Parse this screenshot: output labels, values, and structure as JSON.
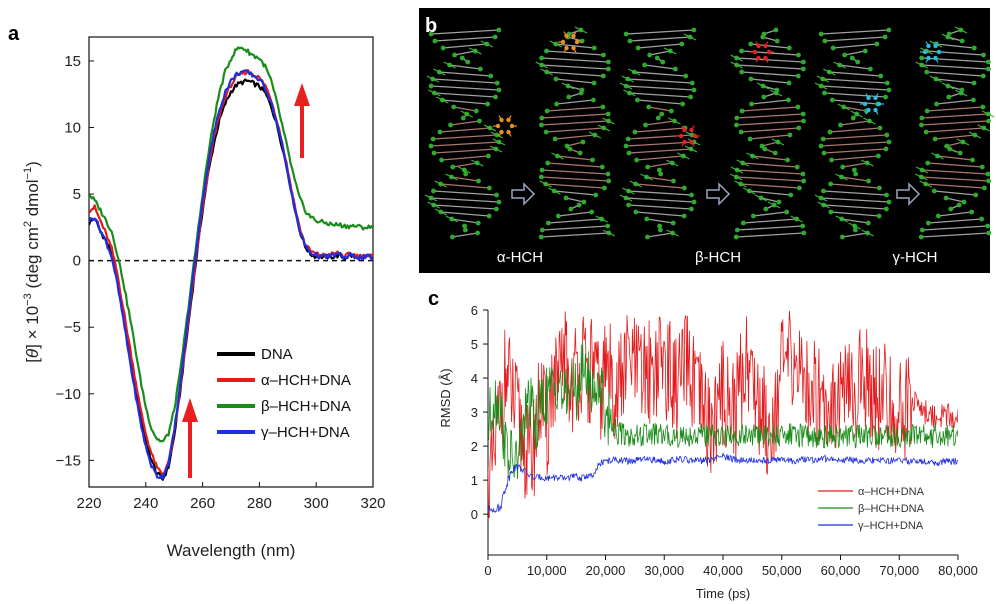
{
  "panels": {
    "a": "a",
    "b": "b",
    "c": "c"
  },
  "colors": {
    "dna": "#000000",
    "alpha": "#e41a1c",
    "beta": "#1a8c1a",
    "gamma": "#1f2fe0"
  },
  "chart_data": [
    {
      "id": "a",
      "type": "line",
      "xlabel": "Wavelength (nm)",
      "ylabel_parts": [
        "[",
        "θ",
        "] × 10",
        "−3",
        " (deg cm",
        "2",
        " dmol",
        "−1",
        ")"
      ],
      "xlim": [
        220,
        320
      ],
      "ylim": [
        -17,
        16.8
      ],
      "xticks": [
        220,
        240,
        260,
        280,
        300,
        320
      ],
      "yticks": [
        -15,
        -10,
        -5,
        0,
        5,
        10,
        15
      ],
      "ytick_labels": [
        "−15",
        "−10",
        "−5",
        "0",
        "5",
        "10",
        "15"
      ],
      "zero_line": true,
      "legend_position": "bottom-right",
      "series": [
        {
          "name": "DNA",
          "color": "#000000",
          "x": [
            220,
            222,
            224,
            226,
            228,
            230,
            232,
            234,
            236,
            238,
            240,
            242,
            244,
            246,
            248,
            250,
            252,
            254,
            256,
            258,
            260,
            262,
            264,
            266,
            268,
            270,
            272,
            274,
            276,
            278,
            280,
            282,
            284,
            286,
            288,
            290,
            292,
            294,
            296,
            298,
            300,
            302,
            304,
            306,
            308,
            310,
            312,
            314,
            316,
            318,
            320
          ],
          "y": [
            2.8,
            3.2,
            2.2,
            1.5,
            0.5,
            -1.5,
            -4,
            -6.5,
            -9,
            -11.5,
            -13.5,
            -15,
            -16,
            -16.4,
            -15.5,
            -13.2,
            -10,
            -6.5,
            -3,
            0.5,
            3.8,
            6.6,
            8.8,
            10.6,
            11.8,
            12.7,
            13.2,
            13.4,
            13.5,
            13.3,
            13.1,
            12.6,
            11.7,
            10.3,
            8.6,
            6.6,
            4.4,
            2.4,
            1.1,
            0.5,
            0.3,
            0.3,
            0.3,
            0.3,
            0.4,
            0.2,
            0.4,
            0.3,
            0.2,
            0.3,
            0.2
          ]
        },
        {
          "name": "α–HCH+DNA",
          "color": "#e41a1c",
          "x": [
            220,
            222,
            224,
            226,
            228,
            230,
            232,
            234,
            236,
            238,
            240,
            242,
            244,
            246,
            248,
            250,
            252,
            254,
            256,
            258,
            260,
            262,
            264,
            266,
            268,
            270,
            272,
            274,
            276,
            278,
            280,
            282,
            284,
            286,
            288,
            290,
            292,
            294,
            296,
            298,
            300,
            302,
            304,
            306,
            308,
            310,
            312,
            314,
            316,
            318,
            320
          ],
          "y": [
            3.8,
            4,
            3,
            2,
            0.9,
            -1,
            -3.5,
            -6,
            -8.5,
            -11,
            -13,
            -14.5,
            -15.6,
            -16,
            -15.2,
            -13,
            -9.8,
            -6.3,
            -2.8,
            0.7,
            4,
            6.8,
            9.2,
            11,
            12.3,
            13.2,
            13.8,
            14.1,
            14.2,
            14,
            13.7,
            13.2,
            12.2,
            10.7,
            8.9,
            6.8,
            4.6,
            2.6,
            1.3,
            0.7,
            0.5,
            0.4,
            0.4,
            0.5,
            0.6,
            0.3,
            0.5,
            0.4,
            0.3,
            0.4,
            0.3
          ]
        },
        {
          "name": "β–HCH+DNA",
          "color": "#1a8c1a",
          "x": [
            220,
            222,
            224,
            226,
            228,
            230,
            232,
            234,
            236,
            238,
            240,
            242,
            244,
            246,
            248,
            250,
            252,
            254,
            256,
            258,
            260,
            262,
            264,
            266,
            268,
            270,
            272,
            274,
            276,
            278,
            280,
            282,
            284,
            286,
            288,
            290,
            292,
            294,
            296,
            298,
            300,
            302,
            304,
            306,
            308,
            310,
            312,
            314,
            316,
            318,
            320
          ],
          "y": [
            5,
            4.5,
            3.8,
            3,
            2.2,
            0.5,
            -1.5,
            -3.8,
            -6.2,
            -8.8,
            -11,
            -12.6,
            -13.4,
            -13.6,
            -13,
            -11.2,
            -8.5,
            -5.2,
            -1.8,
            1.6,
            5,
            8,
            10.6,
            12.7,
            14.2,
            15.2,
            15.9,
            16,
            15.7,
            15.4,
            15.2,
            14.6,
            13.6,
            12,
            10.2,
            8.3,
            6.4,
            4.8,
            3.8,
            3.3,
            3,
            2.9,
            2.8,
            2.7,
            2.7,
            2.6,
            2.6,
            2.6,
            2.5,
            2.5,
            2.5
          ]
        },
        {
          "name": "γ–HCH+DNA",
          "color": "#1f2fe0",
          "x": [
            220,
            222,
            224,
            226,
            228,
            230,
            232,
            234,
            236,
            238,
            240,
            242,
            244,
            246,
            248,
            250,
            252,
            254,
            256,
            258,
            260,
            262,
            264,
            266,
            268,
            270,
            272,
            274,
            276,
            278,
            280,
            282,
            284,
            286,
            288,
            290,
            292,
            294,
            296,
            298,
            300,
            302,
            304,
            306,
            308,
            310,
            312,
            314,
            316,
            318,
            320
          ],
          "y": [
            3,
            3.3,
            2.3,
            1.4,
            0.3,
            -1.8,
            -4.3,
            -7,
            -9.6,
            -12,
            -14,
            -15.4,
            -16.2,
            -16.2,
            -15.2,
            -12.8,
            -9.5,
            -5.9,
            -2.3,
            1.2,
            4.5,
            7.3,
            9.6,
            11.4,
            12.7,
            13.5,
            14,
            14.2,
            14.1,
            13.9,
            13.6,
            13,
            12,
            10.5,
            8.7,
            6.6,
            4.4,
            2.4,
            1.2,
            0.6,
            0.4,
            0.3,
            0.3,
            0.4,
            0.5,
            0.2,
            0.4,
            0.3,
            0.2,
            0.3,
            0.2
          ]
        }
      ]
    },
    {
      "id": "c",
      "type": "line",
      "xlabel": "Time (ps)",
      "ylabel": "RMSD (Å)",
      "xlim": [
        0,
        80000
      ],
      "ylim": [
        -1.2,
        6
      ],
      "xticks": [
        0,
        10000,
        20000,
        30000,
        40000,
        50000,
        60000,
        70000,
        80000
      ],
      "xtick_labels": [
        "0",
        "10,000",
        "20,000",
        "30,000",
        "40,000",
        "50,000",
        "60,000",
        "70,000",
        "80,000"
      ],
      "yticks": [
        0,
        1,
        2,
        3,
        4,
        5,
        6
      ],
      "legend_position": "bottom-right",
      "series": [
        {
          "name": "α–HCH+DNA",
          "color": "#e41a1c",
          "x": [
            0,
            1000,
            2000,
            3000,
            4000,
            5000,
            6000,
            7000,
            8000,
            9000,
            10000,
            11000,
            12000,
            13000,
            14000,
            15000,
            16000,
            17000,
            18000,
            19000,
            20000,
            22000,
            24000,
            26000,
            28000,
            30000,
            32000,
            34000,
            36000,
            38000,
            40000,
            42000,
            44000,
            46000,
            48000,
            50000,
            52000,
            54000,
            56000,
            58000,
            60000,
            62000,
            64000,
            66000,
            68000,
            70000,
            72000,
            74000,
            76000,
            78000,
            80000
          ],
          "y": [
            0.5,
            1.5,
            3,
            4.1,
            3.5,
            2.8,
            2.2,
            1.5,
            2.2,
            3.5,
            2.3,
            4,
            3.6,
            4.8,
            3.6,
            4.2,
            4.5,
            3.8,
            4.6,
            3.2,
            4.4,
            3.6,
            4.6,
            4,
            4.3,
            4.5,
            3.7,
            4.4,
            3.2,
            2.5,
            3.6,
            3,
            4.7,
            3.3,
            2.5,
            4.2,
            4.6,
            3.8,
            3.6,
            3.3,
            3.6,
            3.4,
            4.2,
            3.5,
            3.4,
            2.8,
            3.5,
            3,
            2.9,
            2.9,
            2.8
          ]
        },
        {
          "name": "β–HCH+DNA",
          "color": "#1a8c1a",
          "x": [
            0,
            1000,
            2000,
            3000,
            4000,
            5000,
            6000,
            7000,
            8000,
            9000,
            10000,
            11000,
            12000,
            13000,
            14000,
            15000,
            16000,
            17000,
            18000,
            19000,
            20000,
            22000,
            24000,
            26000,
            28000,
            30000,
            32000,
            34000,
            36000,
            38000,
            40000,
            42000,
            44000,
            46000,
            48000,
            50000,
            52000,
            54000,
            56000,
            58000,
            60000,
            62000,
            64000,
            66000,
            68000,
            70000,
            72000,
            74000,
            76000,
            78000,
            80000
          ],
          "y": [
            2.5,
            3.5,
            3.2,
            2,
            1.6,
            1.5,
            2.5,
            3.4,
            2.5,
            3.2,
            3.5,
            3.7,
            4,
            3.3,
            3.8,
            3.6,
            4.2,
            4.1,
            3.5,
            4,
            3,
            2.4,
            2.3,
            2.3,
            2.35,
            2.3,
            2.3,
            2.3,
            2.35,
            2.3,
            2.3,
            2.3,
            2.3,
            2.3,
            2.3,
            2.3,
            2.35,
            2.3,
            2.3,
            2.3,
            2.3,
            2.3,
            2.3,
            2.3,
            2.3,
            2.3,
            2.3,
            2.3,
            2.3,
            2.3,
            2.3
          ]
        },
        {
          "name": "γ–HCH+DNA",
          "color": "#1f2fe0",
          "x": [
            0,
            1000,
            2000,
            3000,
            4000,
            5000,
            6000,
            7000,
            8000,
            9000,
            10000,
            11000,
            12000,
            13000,
            14000,
            15000,
            16000,
            17000,
            18000,
            19000,
            20000,
            22000,
            24000,
            26000,
            28000,
            30000,
            32000,
            34000,
            36000,
            38000,
            40000,
            42000,
            44000,
            46000,
            48000,
            50000,
            52000,
            54000,
            56000,
            58000,
            60000,
            62000,
            64000,
            66000,
            68000,
            70000,
            72000,
            74000,
            76000,
            78000,
            80000
          ],
          "y": [
            0.1,
            0.2,
            0.15,
            0.8,
            1.3,
            1.4,
            1.3,
            1.15,
            1.05,
            1.1,
            1.05,
            1.1,
            1.05,
            1.05,
            1.1,
            1.1,
            1.05,
            1.15,
            1.1,
            1.5,
            1.55,
            1.6,
            1.55,
            1.6,
            1.6,
            1.55,
            1.6,
            1.6,
            1.55,
            1.6,
            1.7,
            1.6,
            1.6,
            1.55,
            1.6,
            1.6,
            1.55,
            1.6,
            1.6,
            1.65,
            1.6,
            1.6,
            1.55,
            1.6,
            1.55,
            1.6,
            1.55,
            1.55,
            1.5,
            1.55,
            1.55
          ]
        }
      ]
    }
  ],
  "panel_b": {
    "labels": [
      "α-HCH",
      "β-HCH",
      "γ-HCH"
    ],
    "ligand_colors": [
      "#e8902a",
      "#e82020",
      "#2bbde0"
    ]
  }
}
